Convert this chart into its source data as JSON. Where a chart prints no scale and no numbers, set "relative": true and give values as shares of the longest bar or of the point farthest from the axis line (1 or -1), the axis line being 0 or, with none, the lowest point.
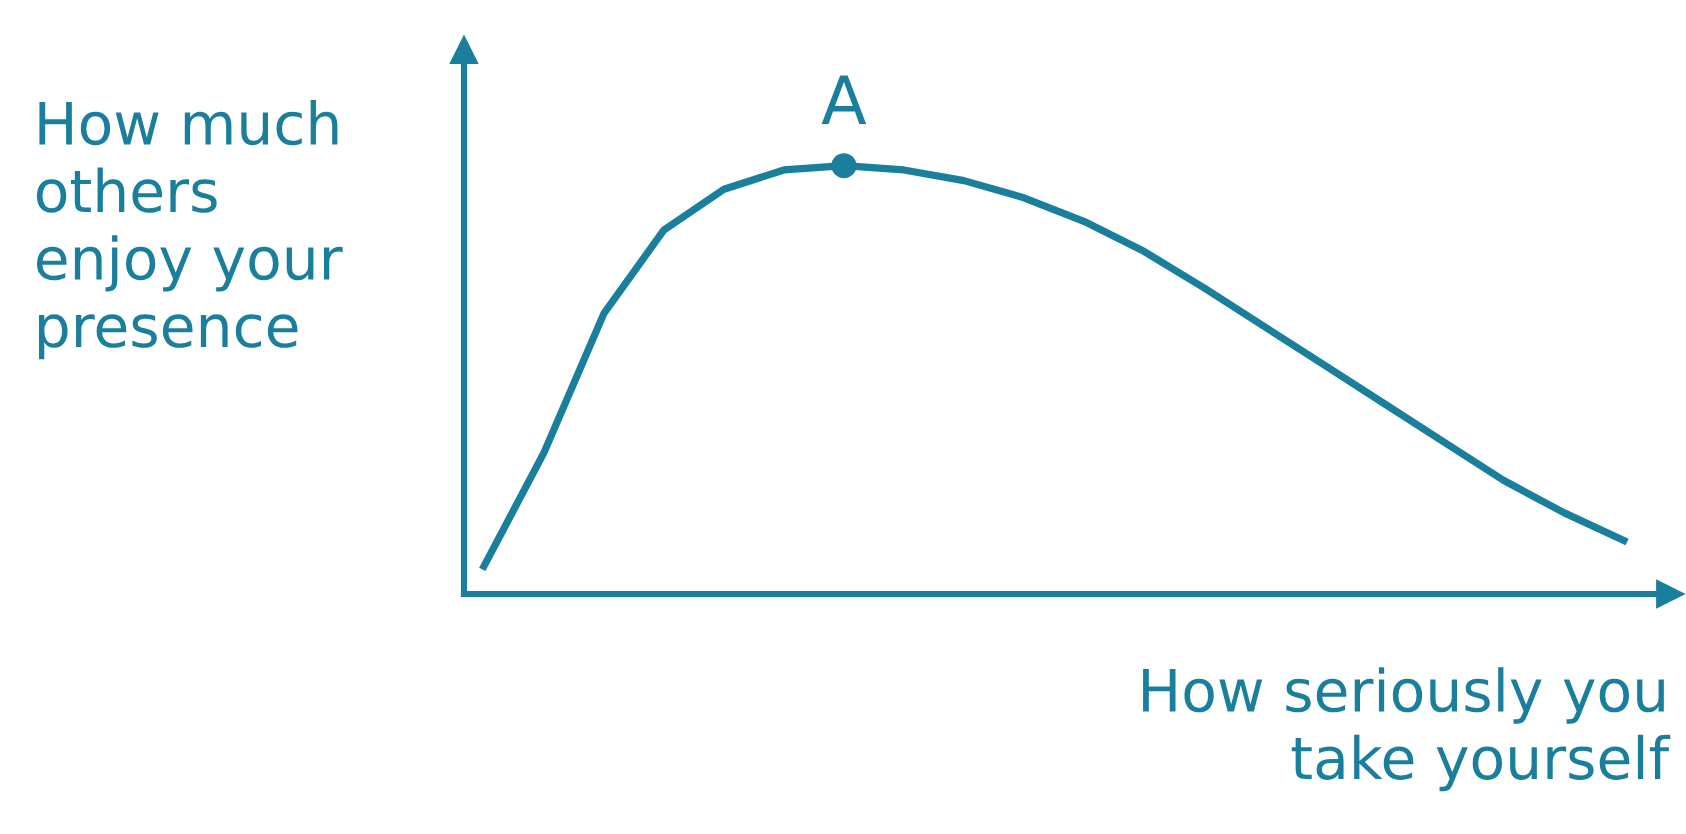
{
  "chart_data": {
    "type": "line",
    "relative": true,
    "color": "#1a7f9c",
    "xlabel": "How seriously you\ntake yourself",
    "ylabel": "How much\nothers\nenjoy your\npresence",
    "categories": [
      null,
      null,
      null,
      null,
      null,
      null,
      null,
      null,
      null,
      null,
      null,
      null,
      null,
      null,
      null,
      null,
      null,
      null,
      null,
      null
    ],
    "series": [
      {
        "color": "#1a7f9c",
        "values": [
          0.065,
          0.33,
          0.655,
          0.85,
          0.945,
          0.99,
          1.0,
          0.99,
          0.965,
          0.925,
          0.87,
          0.8,
          0.715,
          0.625,
          0.535,
          0.445,
          0.355,
          0.265,
          0.19,
          0.125
        ]
      }
    ],
    "annotations": [
      {
        "text": "A",
        "y": 1.0
      }
    ]
  }
}
